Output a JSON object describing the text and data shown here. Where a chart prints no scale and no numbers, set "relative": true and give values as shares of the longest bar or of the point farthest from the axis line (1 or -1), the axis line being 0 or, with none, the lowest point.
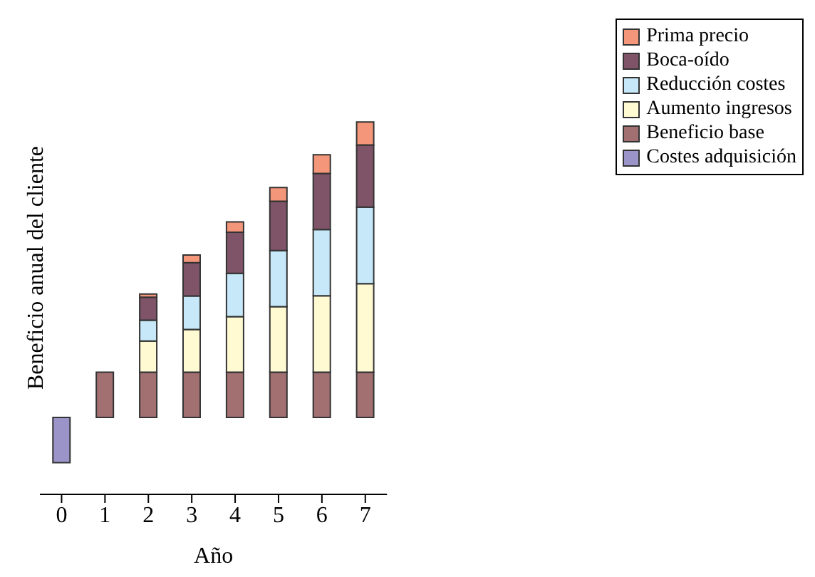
{
  "chart_data": {
    "type": "bar",
    "stacked": true,
    "relative": true,
    "xlabel": "Año",
    "ylabel": "Beneficio anual del cliente",
    "categories": [
      "0",
      "1",
      "2",
      "3",
      "4",
      "5",
      "6",
      "7"
    ],
    "legend": "top right",
    "series": [
      {
        "name": "Costes adquisición",
        "color": "#9b94c9",
        "values": [
          -0.153,
          null,
          null,
          null,
          null,
          null,
          null,
          null
        ]
      },
      {
        "name": "Beneficio base",
        "color": "#a37072",
        "values": [
          null,
          0.153,
          0.153,
          0.153,
          0.153,
          0.153,
          0.153,
          0.153
        ]
      },
      {
        "name": "Aumento ingresos",
        "color": "#fffad2",
        "values": [
          null,
          null,
          0.106,
          0.145,
          0.188,
          0.222,
          0.259,
          0.3
        ]
      },
      {
        "name": "Reducción costes",
        "color": "#c6e8f8",
        "values": [
          null,
          null,
          0.07,
          0.113,
          0.147,
          0.19,
          0.224,
          0.259
        ]
      },
      {
        "name": "Boca-oído",
        "color": "#7f5468",
        "values": [
          null,
          null,
          0.078,
          0.113,
          0.139,
          0.167,
          0.19,
          0.21
        ]
      },
      {
        "name": "Prima precio",
        "color": "#f4967a",
        "values": [
          null,
          null,
          0.011,
          0.026,
          0.035,
          0.046,
          0.063,
          0.078
        ]
      }
    ]
  }
}
